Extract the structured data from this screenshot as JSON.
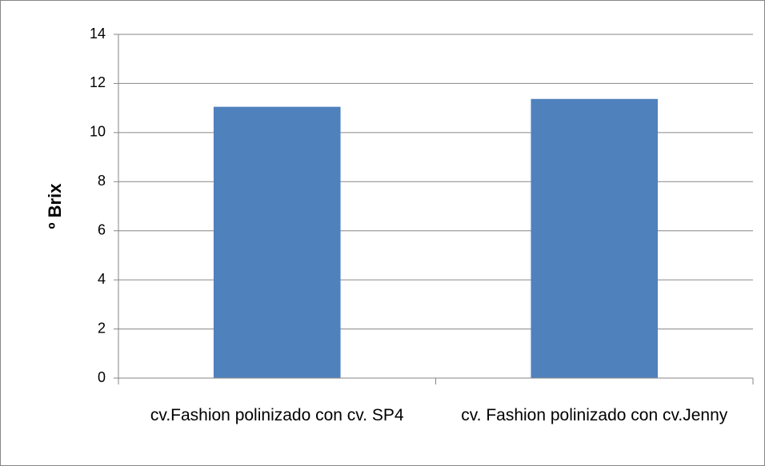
{
  "chart_data": {
    "type": "bar",
    "y_label": "º Brix",
    "categories": [
      "cv.Fashion polinizado con cv. SP4",
      "cv. Fashion polinizado con cv.Jenny"
    ],
    "values": [
      11.05,
      11.37
    ],
    "color": "#4f81bd",
    "ylim": [
      0,
      14
    ],
    "yticks": [
      0,
      2,
      4,
      6,
      8,
      10,
      12,
      14
    ],
    "grid": true
  }
}
